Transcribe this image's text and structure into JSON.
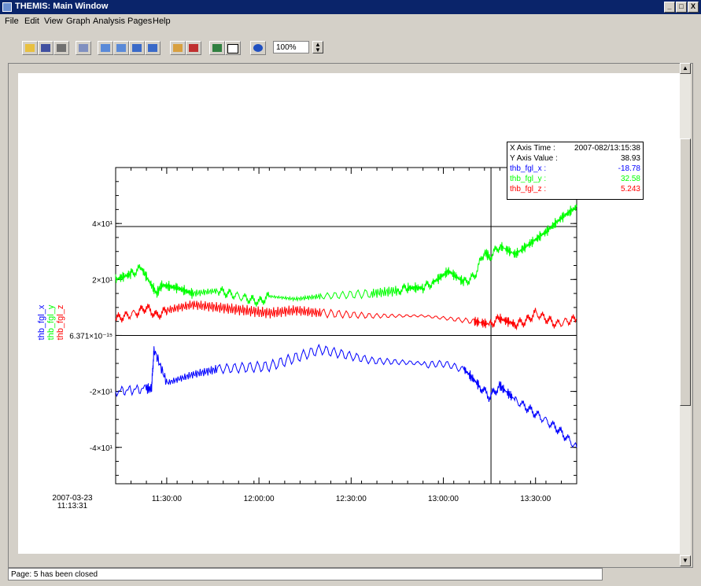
{
  "window": {
    "title": "THEMIS: Main Window",
    "buttons": [
      "_",
      "□",
      "X"
    ]
  },
  "menu": [
    "File",
    "Edit",
    "View",
    "Graph",
    "Analysis",
    "Pages",
    "Help"
  ],
  "toolbar": {
    "zoom": "100%"
  },
  "status": "Page: 5 has been closed",
  "chart_data": {
    "type": "line",
    "x_start_label": [
      "2007-03-23",
      "11:13:31"
    ],
    "x_ticks": [
      "11:30:00",
      "12:00:00",
      "12:30:00",
      "13:00:00",
      "13:30:00"
    ],
    "y_ticks": [
      "4×10¹",
      "2×10¹",
      "6.371×10⁻¹⁵",
      "-2×10¹",
      "-4×10¹"
    ],
    "y_tick_values": [
      40,
      20,
      0,
      -20,
      -40
    ],
    "ylim": [
      -53,
      60
    ],
    "xlim_seconds_after_start": [
      0,
      9000
    ],
    "cursor_x_seconds_after_start": 7327,
    "hlines": [
      38.93,
      0
    ],
    "series": [
      {
        "name": "thb_fgl_x",
        "color": "#0000ff",
        "x": [
          0,
          600,
          700,
          750,
          1000,
          1500,
          2000,
          3000,
          4000,
          5000,
          6000,
          6800,
          7100,
          7300,
          7500,
          7800,
          8200,
          8600,
          9000
        ],
        "y": [
          -20,
          -19,
          -19,
          -5,
          -17,
          -14,
          -12,
          -11,
          -5,
          -9,
          -10,
          -12,
          -18,
          -22,
          -18,
          -23,
          -28,
          -33,
          -40
        ]
      },
      {
        "name": "thb_fgl_y",
        "color": "#00ff00",
        "x": [
          0,
          300,
          500,
          800,
          900,
          1200,
          1500,
          2000,
          2400,
          2800,
          3000,
          3500,
          4000,
          5000,
          5500,
          5700,
          6000,
          6200,
          6500,
          6800,
          7000,
          7200,
          7300,
          7500,
          7800,
          8100,
          8400,
          8700,
          9000
        ],
        "y": [
          20,
          22,
          24,
          15,
          18,
          17,
          15,
          16,
          14,
          12,
          14,
          13,
          14,
          15,
          16,
          17,
          17,
          19,
          23,
          19,
          21,
          30,
          28,
          32,
          29,
          33,
          37,
          42,
          46
        ]
      },
      {
        "name": "thb_fgl_z",
        "color": "#ff0000",
        "x": [
          0,
          400,
          600,
          800,
          1000,
          1500,
          2000,
          2500,
          3000,
          3500,
          4000,
          5000,
          6000,
          7000,
          7300,
          7500,
          7800,
          8000,
          8200,
          8600,
          9000
        ],
        "y": [
          6,
          8,
          10,
          7,
          9,
          11,
          10,
          9,
          8,
          9,
          8,
          7,
          7,
          5,
          4,
          6,
          4,
          5,
          8,
          4,
          6
        ]
      }
    ],
    "readout": {
      "x_axis_time_label": "X Axis Time :",
      "x_axis_time": "2007-082/13:15:38",
      "y_axis_value_label": "Y Axis Value :",
      "y_axis_value": "38.93",
      "x_label": "thb_fgl_x :",
      "x_value": "-18.78",
      "y_label": "thb_fgl_y :",
      "y_value": "32.58",
      "z_label": "thb_fgl_z :",
      "z_value": "5.243"
    }
  }
}
